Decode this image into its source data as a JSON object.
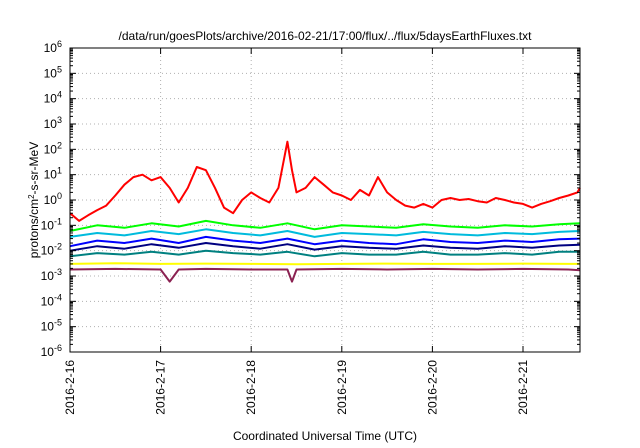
{
  "chart_data": {
    "type": "line",
    "title": "/data/run/goesPlots/archive/2016-02-21/17:00/flux/../flux/5daysEarthFluxes.txt",
    "xlabel": "Coordinated Universal Time (UTC)",
    "ylabel_base": "protons/cm",
    "ylabel_sup": "2",
    "ylabel_rest": "-s-sr-MeV",
    "ylog": true,
    "ylim": [
      1e-06,
      1000000.0
    ],
    "y_tick_exponents": [
      "-6",
      "-5",
      "-4",
      "-3",
      "-2",
      "-1",
      "0",
      "1",
      "2",
      "3",
      "4",
      "5",
      "6"
    ],
    "xlim": [
      "2016-02-16",
      "2016-02-21 17:00"
    ],
    "x_tick_labels": [
      "2016-2-16",
      "2016-2-17",
      "2016-2-18",
      "2016-2-19",
      "2016-2-20",
      "2016-2-21"
    ],
    "grid": true,
    "series": [
      {
        "color": "#ff0000",
        "x": [
          0,
          0.1,
          0.2,
          0.3,
          0.4,
          0.5,
          0.6,
          0.7,
          0.8,
          0.9,
          1.0,
          1.1,
          1.2,
          1.3,
          1.4,
          1.5,
          1.6,
          1.7,
          1.8,
          1.9,
          2.0,
          2.1,
          2.2,
          2.3,
          2.4,
          2.45,
          2.5,
          2.6,
          2.7,
          2.8,
          2.9,
          3.0,
          3.1,
          3.2,
          3.3,
          3.4,
          3.5,
          3.6,
          3.7,
          3.8,
          3.9,
          4.0,
          4.1,
          4.2,
          4.3,
          4.4,
          4.5,
          4.6,
          4.7,
          4.8,
          4.9,
          5.0,
          5.1,
          5.2,
          5.3,
          5.4,
          5.5,
          5.6,
          5.71
        ],
        "y": [
          0.3,
          0.15,
          0.25,
          0.4,
          0.6,
          1.5,
          4,
          8,
          10,
          6,
          8,
          3,
          0.8,
          3,
          20,
          15,
          3,
          0.5,
          0.3,
          1,
          2,
          1.2,
          0.8,
          3,
          200,
          15,
          2,
          3,
          8,
          4,
          2,
          1.5,
          1,
          2.5,
          1.5,
          8,
          2,
          1,
          0.6,
          0.5,
          0.7,
          0.5,
          1,
          1.2,
          1,
          1.1,
          0.9,
          0.8,
          1.2,
          1,
          0.8,
          0.7,
          0.5,
          0.7,
          0.9,
          1.2,
          1.5,
          2,
          3
        ]
      },
      {
        "color": "#00ff00",
        "x": [
          0,
          0.3,
          0.6,
          0.9,
          1.2,
          1.5,
          1.8,
          2.1,
          2.4,
          2.7,
          3.0,
          3.3,
          3.6,
          3.9,
          4.2,
          4.5,
          4.8,
          5.1,
          5.4,
          5.71
        ],
        "y": [
          0.06,
          0.1,
          0.08,
          0.12,
          0.09,
          0.15,
          0.1,
          0.08,
          0.12,
          0.07,
          0.1,
          0.09,
          0.08,
          0.11,
          0.09,
          0.08,
          0.1,
          0.09,
          0.11,
          0.12
        ]
      },
      {
        "color": "#00bbdd",
        "x": [
          0,
          0.3,
          0.6,
          0.9,
          1.2,
          1.5,
          1.8,
          2.1,
          2.4,
          2.7,
          3.0,
          3.3,
          3.6,
          3.9,
          4.2,
          4.5,
          4.8,
          5.1,
          5.4,
          5.71
        ],
        "y": [
          0.035,
          0.05,
          0.04,
          0.06,
          0.045,
          0.07,
          0.05,
          0.04,
          0.06,
          0.035,
          0.05,
          0.045,
          0.04,
          0.055,
          0.045,
          0.04,
          0.05,
          0.045,
          0.055,
          0.06
        ]
      },
      {
        "color": "#0000ff",
        "x": [
          0,
          0.3,
          0.6,
          0.9,
          1.2,
          1.5,
          1.8,
          2.1,
          2.4,
          2.7,
          3.0,
          3.3,
          3.6,
          3.9,
          4.2,
          4.5,
          4.8,
          5.1,
          5.4,
          5.71
        ],
        "y": [
          0.015,
          0.025,
          0.02,
          0.03,
          0.02,
          0.035,
          0.025,
          0.02,
          0.03,
          0.018,
          0.025,
          0.02,
          0.018,
          0.028,
          0.022,
          0.02,
          0.025,
          0.022,
          0.028,
          0.03
        ]
      },
      {
        "color": "#000080",
        "x": [
          0,
          0.3,
          0.6,
          0.9,
          1.2,
          1.5,
          1.8,
          2.1,
          2.4,
          2.7,
          3.0,
          3.3,
          3.6,
          3.9,
          4.2,
          4.5,
          4.8,
          5.1,
          5.4,
          5.71
        ],
        "y": [
          0.01,
          0.015,
          0.012,
          0.018,
          0.013,
          0.02,
          0.015,
          0.012,
          0.018,
          0.011,
          0.015,
          0.013,
          0.012,
          0.016,
          0.013,
          0.012,
          0.015,
          0.013,
          0.016,
          0.017
        ]
      },
      {
        "color": "#008080",
        "x": [
          0,
          0.3,
          0.6,
          0.9,
          1.2,
          1.5,
          1.8,
          2.1,
          2.4,
          2.7,
          3.0,
          3.3,
          3.6,
          3.9,
          4.2,
          4.5,
          4.8,
          5.1,
          5.4,
          5.71
        ],
        "y": [
          0.006,
          0.008,
          0.007,
          0.009,
          0.007,
          0.01,
          0.008,
          0.007,
          0.009,
          0.006,
          0.008,
          0.007,
          0.007,
          0.009,
          0.007,
          0.007,
          0.008,
          0.007,
          0.009,
          0.009
        ]
      },
      {
        "color": "#ffff00",
        "x": [
          0,
          0.5,
          1.0,
          1.5,
          2.0,
          2.5,
          3.0,
          3.5,
          4.0,
          4.5,
          5.0,
          5.5,
          5.71
        ],
        "y": [
          0.003,
          0.0032,
          0.003,
          0.0031,
          0.003,
          0.0029,
          0.003,
          0.0031,
          0.003,
          0.003,
          0.0031,
          0.003,
          0.003
        ]
      },
      {
        "color": "#8b2252",
        "x": [
          0,
          0.5,
          1.0,
          1.1,
          1.2,
          1.5,
          2.0,
          2.4,
          2.45,
          2.5,
          3.0,
          3.5,
          4.0,
          4.5,
          5.0,
          5.5,
          5.71
        ],
        "y": [
          0.0018,
          0.0019,
          0.0018,
          0.0006,
          0.0018,
          0.0019,
          0.0018,
          0.0018,
          0.0006,
          0.0018,
          0.0019,
          0.0018,
          0.0019,
          0.0018,
          0.0019,
          0.0018,
          0.0017
        ]
      }
    ]
  }
}
